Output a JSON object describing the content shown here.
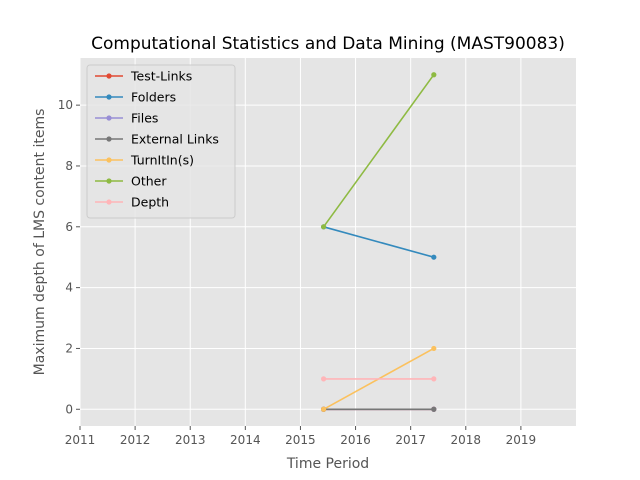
{
  "chart_data": {
    "type": "line",
    "title": "Computational Statistics and Data Mining (MAST90083)",
    "xlabel": "Time Period",
    "ylabel": "Maximum depth of LMS content items",
    "xlim": [
      2011,
      2020
    ],
    "ylim": [
      -0.55,
      11.55
    ],
    "xticks": [
      2011,
      2012,
      2013,
      2014,
      2015,
      2016,
      2017,
      2018,
      2019
    ],
    "yticks": [
      0,
      2,
      4,
      6,
      8,
      10
    ],
    "grid": true,
    "legend_position": "top-left",
    "series": [
      {
        "name": "Test-Links",
        "color": "#e24a33",
        "x": [
          2015.42,
          2017.42
        ],
        "y": [
          0,
          0
        ]
      },
      {
        "name": "Folders",
        "color": "#348abd",
        "x": [
          2015.42,
          2017.42
        ],
        "y": [
          6,
          5
        ]
      },
      {
        "name": "Files",
        "color": "#988ed5",
        "x": [
          2015.42,
          2017.42
        ],
        "y": [
          0,
          0
        ]
      },
      {
        "name": "External Links",
        "color": "#777777",
        "x": [
          2015.42,
          2017.42
        ],
        "y": [
          0,
          0
        ]
      },
      {
        "name": "TurnItIn(s)",
        "color": "#fbc15e",
        "x": [
          2015.42,
          2017.42
        ],
        "y": [
          0,
          2
        ]
      },
      {
        "name": "Other",
        "color": "#8eba42",
        "x": [
          2015.42,
          2017.42
        ],
        "y": [
          6,
          11
        ]
      },
      {
        "name": "Depth",
        "color": "#ffb5b8",
        "x": [
          2015.42,
          2017.42
        ],
        "y": [
          1,
          1
        ]
      }
    ]
  }
}
